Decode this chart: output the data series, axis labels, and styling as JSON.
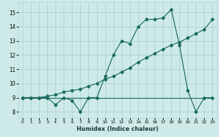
{
  "xlabel": "Humidex (Indice chaleur)",
  "background_color": "#ceeae8",
  "grid_color": "#aed4d0",
  "line_color": "#1a6b60",
  "xlim": [
    -0.5,
    23.5
  ],
  "ylim": [
    7.6,
    15.7
  ],
  "xticks": [
    0,
    1,
    2,
    3,
    4,
    5,
    6,
    7,
    8,
    9,
    10,
    11,
    12,
    13,
    14,
    15,
    16,
    17,
    18,
    19,
    20,
    21,
    22,
    23
  ],
  "yticks": [
    8,
    9,
    10,
    11,
    12,
    13,
    14,
    15
  ],
  "line1_x": [
    0,
    1,
    2,
    3,
    4,
    5,
    6,
    7,
    8,
    9,
    10,
    11,
    12,
    13,
    14,
    15,
    16,
    17,
    18,
    19,
    20,
    21,
    22,
    23
  ],
  "line1_y": [
    9,
    9,
    9,
    9,
    8.5,
    9,
    8.8,
    8.0,
    9,
    9,
    10.5,
    12,
    13,
    12.8,
    14,
    14.5,
    14.5,
    14.6,
    15.2,
    12.7,
    9.5,
    8.0,
    9,
    9
  ],
  "line2_x": [
    0,
    1,
    2,
    3,
    4,
    5,
    6,
    7,
    8,
    9,
    10,
    11,
    12,
    13,
    14,
    15,
    16,
    17,
    18,
    19,
    20,
    21,
    22,
    23
  ],
  "line2_y": [
    9,
    9,
    9,
    9.1,
    9.2,
    9.4,
    9.5,
    9.6,
    9.8,
    10.0,
    10.3,
    10.5,
    10.8,
    11.1,
    11.5,
    11.8,
    12.1,
    12.4,
    12.7,
    12.9,
    13.2,
    13.5,
    13.8,
    14.5
  ],
  "line3_x": [
    0,
    23
  ],
  "line3_y": [
    9,
    9
  ]
}
